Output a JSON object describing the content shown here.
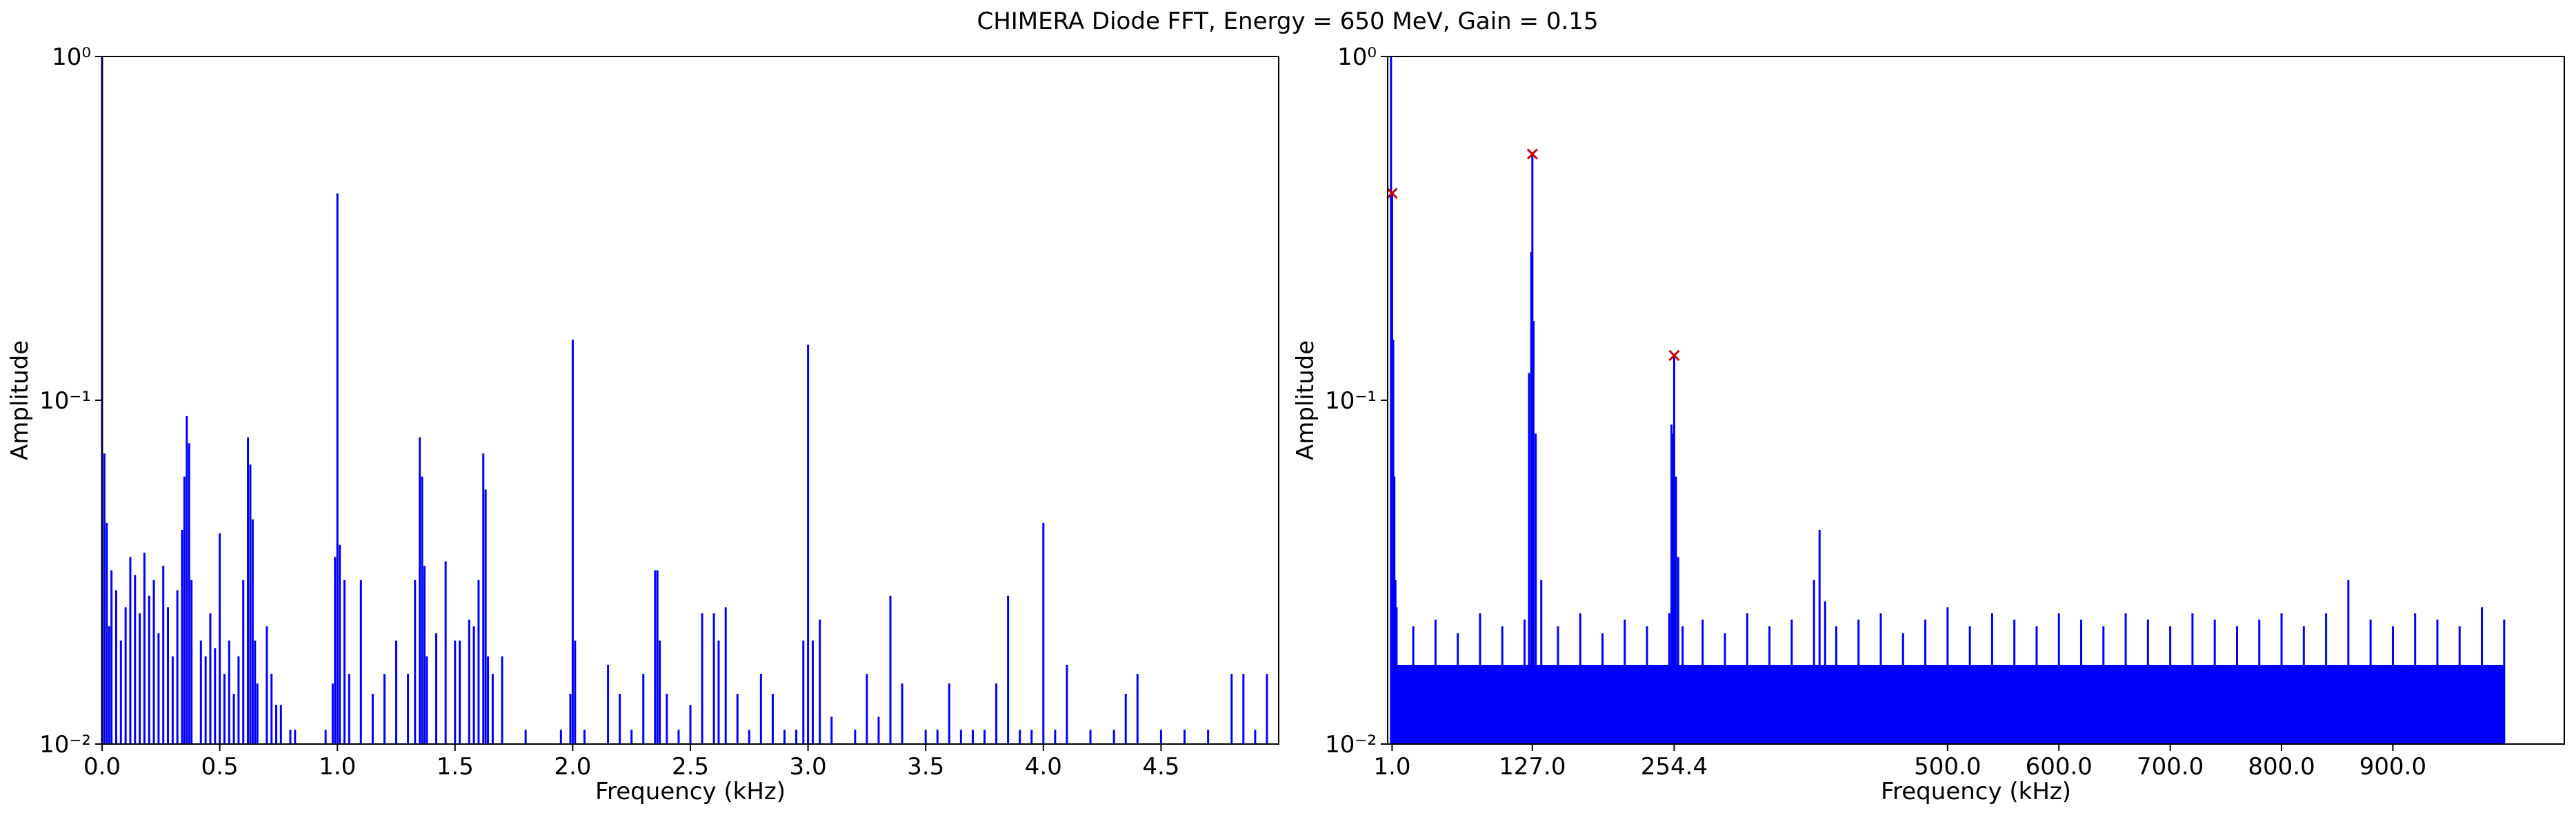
{
  "suptitle": "CHIMERA Diode FFT, Energy = 650 MeV, Gain = 0.15",
  "colors": {
    "line": "#0000ff",
    "marker": "#cc0000",
    "axes": "#000000",
    "background": "#ffffff"
  },
  "chart_data": [
    {
      "type": "line",
      "title": "",
      "xlabel": "Frequency (kHz)",
      "ylabel": "Amplitude",
      "yscale": "log",
      "xlim": [
        0.0,
        5.0
      ],
      "ylim": [
        0.01,
        1.0
      ],
      "xticks": [
        0.0,
        0.5,
        1.0,
        1.5,
        2.0,
        2.5,
        3.0,
        3.5,
        4.0,
        4.5
      ],
      "xtick_labels": [
        "0.0",
        "0.5",
        "1.0",
        "1.5",
        "2.0",
        "2.5",
        "3.0",
        "3.5",
        "4.0",
        "4.5"
      ],
      "yticks": [
        0.01,
        0.1,
        1.0
      ],
      "ytick_labels": [
        "10⁻²",
        "10⁻¹",
        "10⁰"
      ],
      "grid": false,
      "series": [
        {
          "x": [
            0.0,
            0.01,
            0.02,
            0.03,
            0.04,
            0.06,
            0.08,
            0.1,
            0.12,
            0.14,
            0.16,
            0.18,
            0.2,
            0.22,
            0.24,
            0.26,
            0.28,
            0.3,
            0.32,
            0.34,
            0.35,
            0.36,
            0.37,
            0.38,
            0.42,
            0.44,
            0.46,
            0.48,
            0.5,
            0.52,
            0.54,
            0.56,
            0.58,
            0.6,
            0.62,
            0.63,
            0.64,
            0.65,
            0.66,
            0.7,
            0.72,
            0.74,
            0.76,
            0.8,
            0.82,
            0.95,
            0.98,
            0.99,
            1.0,
            1.01,
            1.03,
            1.05,
            1.1,
            1.15,
            1.2,
            1.25,
            1.3,
            1.33,
            1.35,
            1.36,
            1.37,
            1.38,
            1.42,
            1.46,
            1.5,
            1.52,
            1.56,
            1.58,
            1.6,
            1.62,
            1.63,
            1.64,
            1.66,
            1.7,
            1.8,
            1.95,
            1.99,
            2.0,
            2.01,
            2.05,
            2.15,
            2.2,
            2.25,
            2.3,
            2.35,
            2.36,
            2.37,
            2.4,
            2.45,
            2.5,
            2.55,
            2.6,
            2.62,
            2.65,
            2.7,
            2.75,
            2.8,
            2.85,
            2.9,
            2.95,
            2.98,
            3.0,
            3.02,
            3.05,
            3.1,
            3.2,
            3.25,
            3.3,
            3.35,
            3.4,
            3.5,
            3.55,
            3.6,
            3.65,
            3.7,
            3.75,
            3.8,
            3.85,
            3.9,
            3.95,
            4.0,
            4.05,
            4.1,
            4.2,
            4.3,
            4.35,
            4.4,
            4.5,
            4.6,
            4.7,
            4.8,
            4.85,
            4.9,
            4.95
          ],
          "y": [
            1.0,
            0.07,
            0.044,
            0.022,
            0.032,
            0.028,
            0.02,
            0.025,
            0.035,
            0.031,
            0.024,
            0.036,
            0.027,
            0.03,
            0.021,
            0.033,
            0.025,
            0.018,
            0.028,
            0.042,
            0.06,
            0.09,
            0.075,
            0.03,
            0.02,
            0.018,
            0.024,
            0.019,
            0.041,
            0.016,
            0.02,
            0.014,
            0.018,
            0.03,
            0.078,
            0.065,
            0.045,
            0.02,
            0.015,
            0.022,
            0.016,
            0.013,
            0.013,
            0.011,
            0.011,
            0.011,
            0.015,
            0.035,
            0.4,
            0.038,
            0.03,
            0.016,
            0.03,
            0.014,
            0.016,
            0.02,
            0.016,
            0.03,
            0.078,
            0.06,
            0.033,
            0.018,
            0.021,
            0.034,
            0.02,
            0.02,
            0.023,
            0.022,
            0.03,
            0.07,
            0.055,
            0.018,
            0.016,
            0.018,
            0.011,
            0.011,
            0.014,
            0.15,
            0.02,
            0.011,
            0.017,
            0.014,
            0.011,
            0.016,
            0.032,
            0.032,
            0.02,
            0.014,
            0.011,
            0.013,
            0.024,
            0.024,
            0.02,
            0.025,
            0.014,
            0.011,
            0.016,
            0.014,
            0.011,
            0.011,
            0.02,
            0.145,
            0.02,
            0.023,
            0.012,
            0.011,
            0.016,
            0.012,
            0.027,
            0.015,
            0.011,
            0.011,
            0.015,
            0.011,
            0.011,
            0.011,
            0.015,
            0.027,
            0.011,
            0.011,
            0.044,
            0.011,
            0.017,
            0.011,
            0.011,
            0.014,
            0.016,
            0.011,
            0.011,
            0.011,
            0.016,
            0.016,
            0.011,
            0.016
          ]
        }
      ]
    },
    {
      "type": "line",
      "title": "",
      "xlabel": "Frequency (kHz)",
      "ylabel": "Amplitude",
      "yscale": "log",
      "xlim": [
        -3.0,
        1054.0
      ],
      "ylim": [
        0.01,
        1.0
      ],
      "xticks": [
        1.0,
        127.0,
        254.4,
        500.0,
        600.0,
        700.0,
        800.0,
        900.0
      ],
      "xtick_labels": [
        "1.0",
        "127.0",
        "254.4",
        "500.0",
        "600.0",
        "700.0",
        "800.0",
        "900.0"
      ],
      "yticks": [
        0.01,
        0.1,
        1.0
      ],
      "ytick_labels": [
        "10⁻²",
        "10⁻¹",
        "10⁰"
      ],
      "grid": false,
      "series": [
        {
          "x": [
            0.0,
            1.0,
            2.0,
            3.0,
            4.0,
            5.0,
            20.0,
            40.0,
            60.0,
            80.0,
            100.0,
            120.0,
            124.0,
            126.0,
            127.0,
            128.0,
            130.0,
            135.0,
            150.0,
            170.0,
            190.0,
            210.0,
            230.0,
            250.0,
            252.0,
            253.0,
            254.4,
            256.0,
            258.0,
            262.0,
            280.0,
            300.0,
            320.0,
            340.0,
            360.0,
            380.0,
            385.0,
            390.0,
            400.0,
            420.0,
            440.0,
            460.0,
            480.0,
            500.0,
            520.0,
            540.0,
            560.0,
            580.0,
            600.0,
            620.0,
            640.0,
            660.0,
            680.0,
            700.0,
            720.0,
            740.0,
            760.0,
            780.0,
            800.0,
            820.0,
            840.0,
            860.0,
            880.0,
            900.0,
            920.0,
            940.0,
            960.0,
            980.0,
            1000.0
          ],
          "y": [
            1.0,
            0.4,
            0.15,
            0.06,
            0.03,
            0.025,
            0.022,
            0.023,
            0.021,
            0.024,
            0.022,
            0.023,
            0.12,
            0.27,
            0.52,
            0.17,
            0.08,
            0.03,
            0.022,
            0.024,
            0.021,
            0.023,
            0.022,
            0.024,
            0.085,
            0.08,
            0.135,
            0.06,
            0.035,
            0.022,
            0.023,
            0.021,
            0.024,
            0.022,
            0.023,
            0.03,
            0.042,
            0.026,
            0.022,
            0.023,
            0.024,
            0.021,
            0.023,
            0.025,
            0.022,
            0.024,
            0.023,
            0.022,
            0.024,
            0.023,
            0.022,
            0.024,
            0.023,
            0.022,
            0.024,
            0.023,
            0.022,
            0.023,
            0.024,
            0.022,
            0.024,
            0.03,
            0.023,
            0.022,
            0.024,
            0.023,
            0.022,
            0.025,
            0.023
          ]
        }
      ],
      "peak_markers": {
        "x": [
          1.0,
          127.0,
          254.4
        ],
        "y": [
          0.4,
          0.52,
          0.135
        ]
      }
    }
  ]
}
